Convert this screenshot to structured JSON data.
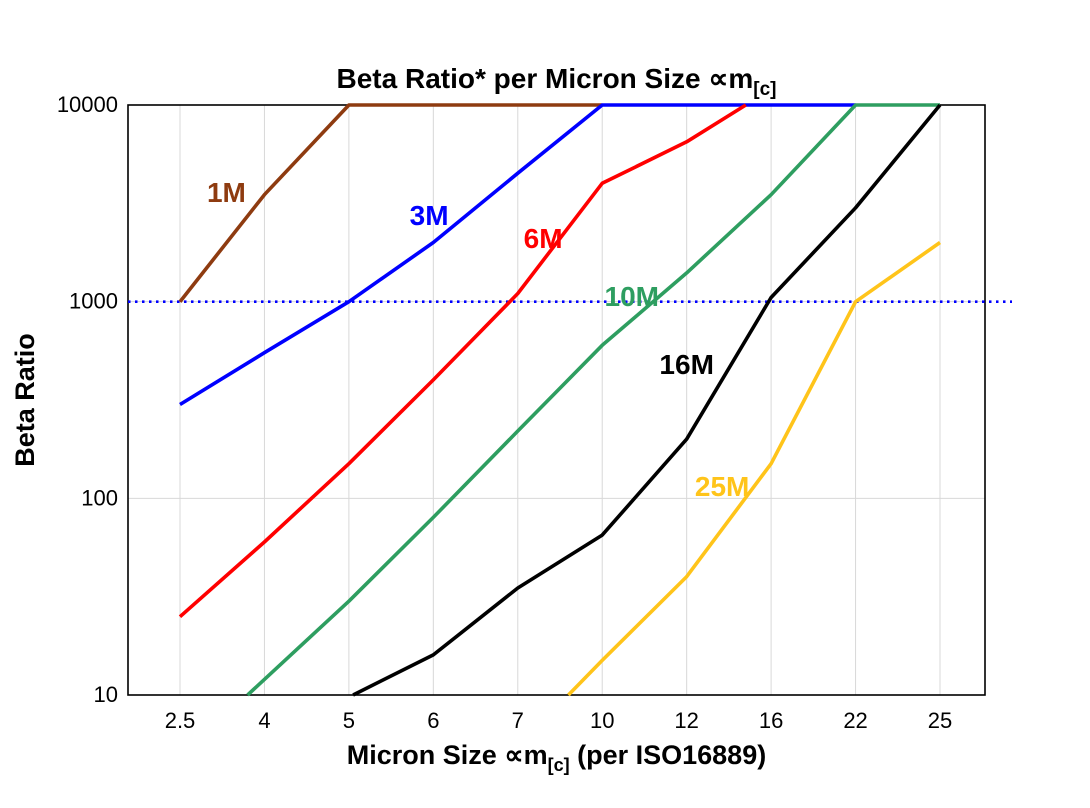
{
  "chart_data": {
    "type": "line",
    "title": {
      "main": "Beta Ratio* per Micron Size ∝m",
      "sub": "[c]"
    },
    "ylabel": "Beta Ratio",
    "xlabel": {
      "main": "Micron Size ∝m",
      "sub": "[c]",
      "post": " (per ISO16889)"
    },
    "x_categories": [
      "2.5",
      "4",
      "5",
      "6",
      "7",
      "10",
      "12",
      "16",
      "22",
      "25"
    ],
    "y_ticks": [
      "10",
      "100",
      "1000",
      "10000"
    ],
    "y_scale": "log",
    "ylim": [
      10,
      10000
    ],
    "grid": true,
    "grid_color": "#d8d8d8",
    "axis_color": "#000000",
    "reference_line": {
      "y": 1000,
      "color": "#0000ff",
      "style": "dotted"
    },
    "series": [
      {
        "name": "1M",
        "color": "#8e3b10",
        "label": {
          "xi": 0.55,
          "y": 3600
        },
        "points": [
          [
            0,
            1000
          ],
          [
            1,
            3500
          ],
          [
            2,
            10000
          ],
          [
            5,
            10000
          ]
        ]
      },
      {
        "name": "3M",
        "color": "#0000ff",
        "label": {
          "xi": 2.95,
          "y": 2750
        },
        "points": [
          [
            0,
            300
          ],
          [
            1,
            550
          ],
          [
            2,
            1000
          ],
          [
            3,
            2000
          ],
          [
            4,
            4500
          ],
          [
            5,
            10000
          ],
          [
            8,
            10000
          ]
        ]
      },
      {
        "name": "6M",
        "color": "#ff0000",
        "label": {
          "xi": 4.3,
          "y": 2100
        },
        "points": [
          [
            0,
            25
          ],
          [
            1,
            60
          ],
          [
            2,
            150
          ],
          [
            3,
            400
          ],
          [
            4,
            1100
          ],
          [
            5,
            4000
          ],
          [
            6,
            6500
          ],
          [
            6.7,
            10000
          ]
        ]
      },
      {
        "name": "10M",
        "color": "#2e9e60",
        "label": {
          "xi": 5.35,
          "y": 1060
        },
        "points": [
          [
            0.8,
            10
          ],
          [
            1,
            12
          ],
          [
            2,
            30
          ],
          [
            3,
            80
          ],
          [
            4,
            220
          ],
          [
            5,
            600
          ],
          [
            6,
            1400
          ],
          [
            7,
            3500
          ],
          [
            8,
            10000
          ],
          [
            9,
            10000
          ]
        ]
      },
      {
        "name": "16M",
        "color": "#000000",
        "label": {
          "xi": 6.0,
          "y": 480
        },
        "points": [
          [
            2.05,
            10
          ],
          [
            3,
            16
          ],
          [
            4,
            35
          ],
          [
            5,
            65
          ],
          [
            6,
            200
          ],
          [
            7,
            1050
          ],
          [
            8,
            3000
          ],
          [
            9,
            10000
          ]
        ]
      },
      {
        "name": "25M",
        "color": "#ffc41a",
        "label": {
          "xi": 6.42,
          "y": 115
        },
        "points": [
          [
            4.6,
            10
          ],
          [
            5,
            15
          ],
          [
            6,
            40
          ],
          [
            7,
            150
          ],
          [
            8,
            1000
          ],
          [
            9,
            2000
          ]
        ]
      }
    ]
  }
}
